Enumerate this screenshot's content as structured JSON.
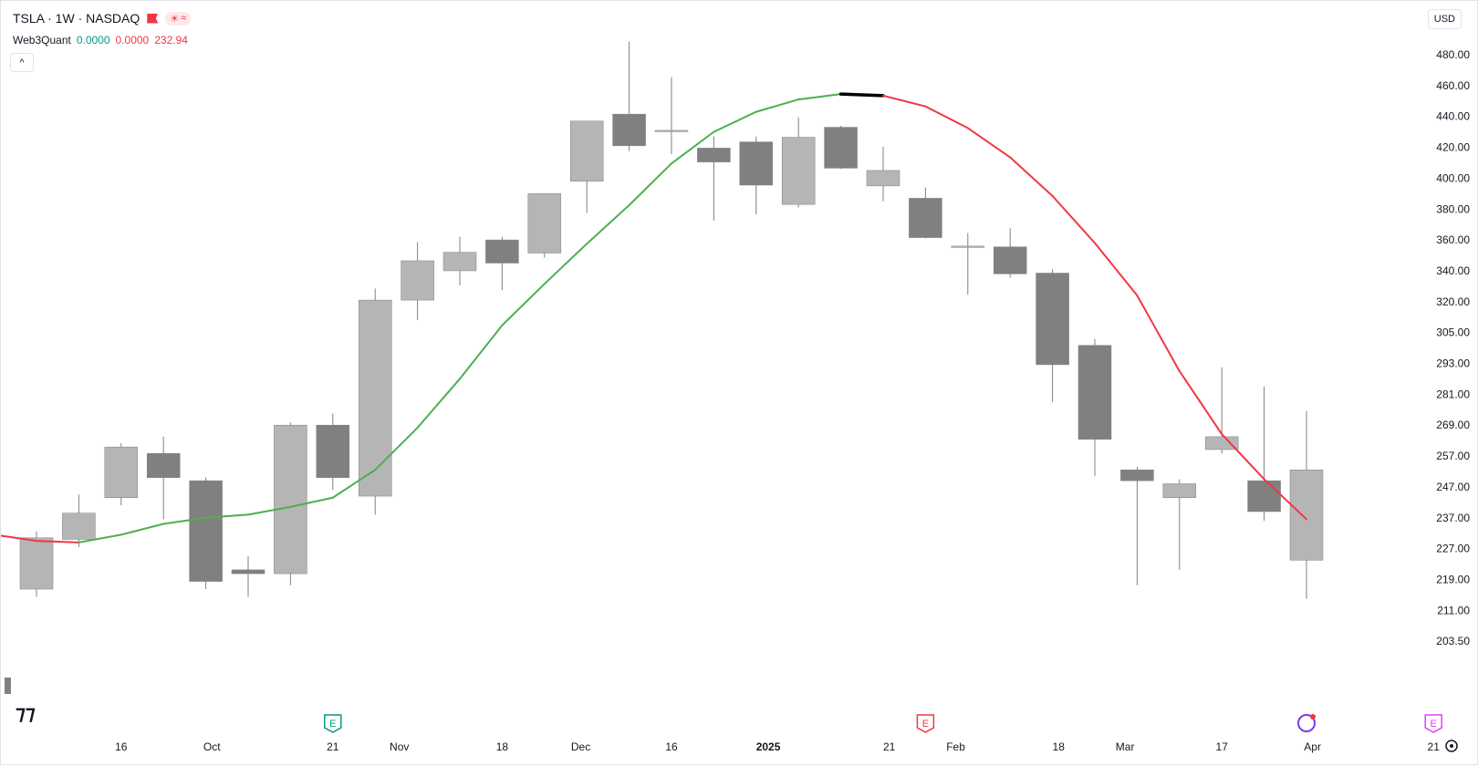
{
  "header": {
    "symbol_line": "TSLA · 1W · NASDAQ",
    "indicator_name": "Web3Quant",
    "indicator_val_1": "0.0000",
    "indicator_val_2": "0.0000",
    "indicator_val_3": "232.94",
    "currency": "USD",
    "collapse_glyph": "^"
  },
  "colors": {
    "up_candle": "#b5b5b5",
    "down_candle": "#808080",
    "wick": "#808080",
    "ma_rising": "#4caf50",
    "ma_falling": "#f23645",
    "ma_flat": "#000000",
    "earnings_teal": "#089981",
    "earnings_red": "#f23645",
    "earnings_magenta": "#e040fb"
  },
  "chart_data": {
    "type": "candlestick",
    "price_scale_labels": [
      "480.00",
      "460.00",
      "440.00",
      "420.00",
      "400.00",
      "380.00",
      "360.00",
      "340.00",
      "320.00",
      "305.00",
      "293.00",
      "281.00",
      "269.00",
      "257.00",
      "247.00",
      "237.00",
      "227.00",
      "219.00",
      "211.00",
      "203.50"
    ],
    "time_labels": [
      {
        "text": "16",
        "bold": false,
        "date": "2024-09-16"
      },
      {
        "text": "Oct",
        "bold": false,
        "date": "2024-10-01"
      },
      {
        "text": "21",
        "bold": false,
        "date": "2024-10-21"
      },
      {
        "text": "Nov",
        "bold": false,
        "date": "2024-11-01"
      },
      {
        "text": "18",
        "bold": false,
        "date": "2024-11-18"
      },
      {
        "text": "Dec",
        "bold": false,
        "date": "2024-12-01"
      },
      {
        "text": "16",
        "bold": false,
        "date": "2024-12-16"
      },
      {
        "text": "2025",
        "bold": true,
        "date": "2025-01-01"
      },
      {
        "text": "21",
        "bold": false,
        "date": "2025-01-21"
      },
      {
        "text": "Feb",
        "bold": false,
        "date": "2025-02-01"
      },
      {
        "text": "18",
        "bold": false,
        "date": "2025-02-18"
      },
      {
        "text": "Mar",
        "bold": false,
        "date": "2025-03-01"
      },
      {
        "text": "17",
        "bold": false,
        "date": "2025-03-17"
      },
      {
        "text": "Apr",
        "bold": false,
        "date": "2025-04-01"
      },
      {
        "text": "21",
        "bold": false,
        "date": "2025-04-21"
      }
    ],
    "candles": [
      {
        "date": "2024-09-02",
        "open": 216.5,
        "high": 232.5,
        "low": 214.5,
        "close": 230.5
      },
      {
        "date": "2024-09-09",
        "open": 230.0,
        "high": 244.5,
        "low": 227.5,
        "close": 238.5
      },
      {
        "date": "2024-09-16",
        "open": 243.5,
        "high": 262.0,
        "low": 241.0,
        "close": 260.5
      },
      {
        "date": "2024-09-23",
        "open": 258.0,
        "high": 264.5,
        "low": 236.5,
        "close": 250.0
      },
      {
        "date": "2024-09-30",
        "open": 249.0,
        "high": 250.0,
        "low": 216.5,
        "close": 218.5
      },
      {
        "date": "2024-10-07",
        "open": 221.5,
        "high": 225.0,
        "low": 214.5,
        "close": 220.5
      },
      {
        "date": "2024-10-14",
        "open": 220.5,
        "high": 270.0,
        "low": 217.5,
        "close": 269.0
      },
      {
        "date": "2024-10-21",
        "open": 269.0,
        "high": 273.5,
        "low": 246.0,
        "close": 250.0
      },
      {
        "date": "2024-10-28",
        "open": 244.0,
        "high": 328.5,
        "low": 238.0,
        "close": 321.0
      },
      {
        "date": "2024-11-04",
        "open": 321.0,
        "high": 358.5,
        "low": 311.0,
        "close": 346.5
      },
      {
        "date": "2024-11-11",
        "open": 340.0,
        "high": 362.0,
        "low": 330.5,
        "close": 352.0
      },
      {
        "date": "2024-11-18",
        "open": 360.0,
        "high": 362.0,
        "low": 327.5,
        "close": 345.0
      },
      {
        "date": "2024-11-25",
        "open": 351.5,
        "high": 390.0,
        "low": 348.5,
        "close": 390.0
      },
      {
        "date": "2024-12-02",
        "open": 398.0,
        "high": 437.0,
        "low": 377.5,
        "close": 437.0
      },
      {
        "date": "2024-12-09",
        "open": 441.5,
        "high": 488.5,
        "low": 417.5,
        "close": 421.0
      },
      {
        "date": "2024-12-16",
        "open": 431.0,
        "high": 465.5,
        "low": 415.5,
        "close": 431.0
      },
      {
        "date": "2024-12-23",
        "open": 419.5,
        "high": 427.0,
        "low": 372.5,
        "close": 410.5
      },
      {
        "date": "2024-12-30",
        "open": 423.5,
        "high": 427.0,
        "low": 376.5,
        "close": 395.5
      },
      {
        "date": "2025-01-06",
        "open": 383.0,
        "high": 439.5,
        "low": 381.0,
        "close": 426.5
      },
      {
        "date": "2025-01-13",
        "open": 433.0,
        "high": 434.0,
        "low": 406.0,
        "close": 406.5
      },
      {
        "date": "2025-01-20",
        "open": 395.0,
        "high": 420.5,
        "low": 385.0,
        "close": 405.0
      },
      {
        "date": "2025-01-27",
        "open": 387.0,
        "high": 394.0,
        "low": 361.0,
        "close": 361.5
      },
      {
        "date": "2025-02-03",
        "open": 356.0,
        "high": 364.5,
        "low": 324.5,
        "close": 356.0
      },
      {
        "date": "2025-02-10",
        "open": 355.5,
        "high": 367.5,
        "low": 335.5,
        "close": 338.0
      },
      {
        "date": "2025-02-17",
        "open": 338.5,
        "high": 341.0,
        "low": 278.0,
        "close": 292.5
      },
      {
        "date": "2025-02-24",
        "open": 300.0,
        "high": 302.5,
        "low": 250.5,
        "close": 263.5
      },
      {
        "date": "2025-03-03",
        "open": 252.5,
        "high": 253.5,
        "low": 217.5,
        "close": 249.0
      },
      {
        "date": "2025-03-10",
        "open": 243.5,
        "high": 249.5,
        "low": 221.5,
        "close": 248.0
      },
      {
        "date": "2025-03-17",
        "open": 259.5,
        "high": 291.5,
        "low": 258.0,
        "close": 264.5
      },
      {
        "date": "2025-03-24",
        "open": 249.0,
        "high": 284.0,
        "low": 236.0,
        "close": 239.0
      },
      {
        "date": "2025-03-31",
        "open": 224.0,
        "high": 274.5,
        "low": 214.0,
        "close": 252.5
      }
    ],
    "ma_series": [
      {
        "date": "2024-08-26",
        "value": 231.5
      },
      {
        "date": "2024-09-02",
        "value": 229.5
      },
      {
        "date": "2024-09-09",
        "value": 229.0
      },
      {
        "date": "2024-09-16",
        "value": 231.5
      },
      {
        "date": "2024-09-23",
        "value": 235.0
      },
      {
        "date": "2024-09-30",
        "value": 237.0
      },
      {
        "date": "2024-10-07",
        "value": 238.0
      },
      {
        "date": "2024-10-14",
        "value": 240.5
      },
      {
        "date": "2024-10-21",
        "value": 243.5
      },
      {
        "date": "2024-10-28",
        "value": 252.5
      },
      {
        "date": "2024-11-04",
        "value": 268.0
      },
      {
        "date": "2024-11-11",
        "value": 287.0
      },
      {
        "date": "2024-11-18",
        "value": 308.5
      },
      {
        "date": "2024-11-25",
        "value": 331.5
      },
      {
        "date": "2024-12-02",
        "value": 357.5
      },
      {
        "date": "2024-12-09",
        "value": 382.5
      },
      {
        "date": "2024-12-16",
        "value": 409.5
      },
      {
        "date": "2024-12-23",
        "value": 430.0
      },
      {
        "date": "2024-12-30",
        "value": 443.0
      },
      {
        "date": "2025-01-06",
        "value": 451.0
      },
      {
        "date": "2025-01-13",
        "value": 454.5
      },
      {
        "date": "2025-01-20",
        "value": 453.5
      },
      {
        "date": "2025-01-27",
        "value": 446.5
      },
      {
        "date": "2025-02-03",
        "value": 432.5
      },
      {
        "date": "2025-02-10",
        "value": 413.5
      },
      {
        "date": "2025-02-17",
        "value": 388.5
      },
      {
        "date": "2025-02-24",
        "value": 358.0
      },
      {
        "date": "2025-03-03",
        "value": 324.0
      },
      {
        "date": "2025-03-10",
        "value": 290.0
      },
      {
        "date": "2025-03-17",
        "value": 265.5
      },
      {
        "date": "2025-03-24",
        "value": 249.5
      },
      {
        "date": "2025-03-31",
        "value": 236.5
      }
    ],
    "ma_flat_range": [
      "2025-01-13",
      "2025-01-20"
    ],
    "event_markers": [
      {
        "date": "2024-10-21",
        "label": "E",
        "kind": "earnings",
        "color": "#089981"
      },
      {
        "date": "2025-01-27",
        "label": "E",
        "kind": "earnings",
        "color": "#f23645"
      },
      {
        "date": "2025-03-31",
        "label": "",
        "kind": "event",
        "color": "#7b39ed"
      },
      {
        "date": "2025-04-21",
        "label": "E",
        "kind": "earnings",
        "color": "#e040fb"
      }
    ]
  }
}
